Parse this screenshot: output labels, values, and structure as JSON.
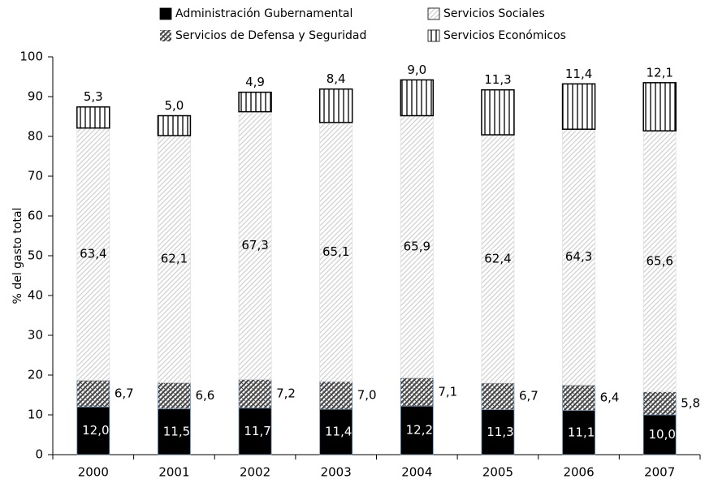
{
  "chart_data": {
    "type": "stacked_bar",
    "ylabel": "% del gasto total",
    "categories": [
      "2000",
      "2001",
      "2002",
      "2003",
      "2004",
      "2005",
      "2006",
      "2007"
    ],
    "series": [
      {
        "name": "Administración Gubernamental",
        "color": "#000000",
        "values": [
          12.0,
          11.5,
          11.7,
          11.4,
          12.2,
          11.3,
          11.1,
          10.0
        ],
        "value_labels": [
          "12,0",
          "11,5",
          "11,7",
          "11,4",
          "12,2",
          "11,3",
          "11,1",
          "10,0"
        ]
      },
      {
        "name": "Servicios de Defensa y Seguridad",
        "color": "#4a4a4a",
        "values": [
          6.7,
          6.6,
          7.2,
          7.0,
          7.1,
          6.7,
          6.4,
          5.8
        ],
        "value_labels": [
          "6,7",
          "6,6",
          "7,2",
          "7,0",
          "7,1",
          "6,7",
          "6,4",
          "5,8"
        ]
      },
      {
        "name": "Servicios Sociales",
        "color": "#cfcfcf",
        "values": [
          63.4,
          62.1,
          67.3,
          65.1,
          65.9,
          62.4,
          64.3,
          65.6
        ],
        "value_labels": [
          "63,4",
          "62,1",
          "67,3",
          "65,1",
          "65,9",
          "62,4",
          "64,3",
          "65,6"
        ]
      },
      {
        "name": "Servicios Económicos",
        "color": "#000000",
        "values": [
          5.3,
          5.0,
          4.9,
          8.4,
          9.0,
          11.3,
          11.4,
          12.1
        ],
        "value_labels": [
          "5,3",
          "5,0",
          "4,9",
          "8,4",
          "9,0",
          "11,3",
          "11,4",
          "12,1"
        ]
      }
    ],
    "ylim": [
      0,
      100
    ],
    "yticks": [
      0,
      10,
      20,
      30,
      40,
      50,
      60,
      70,
      80,
      90,
      100
    ],
    "grid": false
  }
}
